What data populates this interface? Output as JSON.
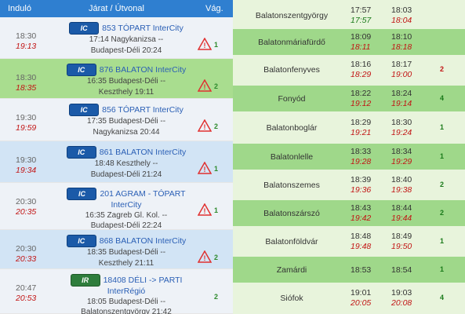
{
  "header": {
    "departure": "Induló",
    "route": "Járat / Útvonal",
    "track": "Vág."
  },
  "trains": [
    {
      "dep": "18:30",
      "dep_actual": "19:13",
      "logo": "IC",
      "name": "853 TÓPART InterCity",
      "stations": [
        "17:14 Nagykanizsa --",
        "Budapest-Déli 20:24"
      ],
      "track": "1",
      "warning": true
    },
    {
      "dep": "18:30",
      "dep_actual": "18:35",
      "logo": "IC",
      "name": "876 BALATON InterCity",
      "stations": [
        "16:35 Budapest-Déli --",
        "Keszthely 19:11"
      ],
      "track": "2",
      "warning": true
    },
    {
      "dep": "19:30",
      "dep_actual": "19:59",
      "logo": "IC",
      "name": "856 TÓPART InterCity",
      "stations": [
        "17:35 Budapest-Déli --",
        "Nagykanizsa 20:44"
      ],
      "track": "2",
      "warning": true
    },
    {
      "dep": "19:30",
      "dep_actual": "19:34",
      "logo": "IC",
      "name": "861 BALATON InterCity",
      "stations": [
        "18:48 Keszthely --",
        "Budapest-Déli 21:24"
      ],
      "track": "1",
      "warning": true
    },
    {
      "dep": "20:30",
      "dep_actual": "20:35",
      "logo": "IC",
      "name": "201 AGRAM - TÓPART",
      "name2": "InterCity",
      "stations": [
        "16:35 Zagreb Gl. Kol. --",
        "Budapest-Déli 22:24"
      ],
      "track": "1",
      "warning": true
    },
    {
      "dep": "20:30",
      "dep_actual": "20:33",
      "logo": "IC",
      "name": "868 BALATON InterCity",
      "stations": [
        "18:35 Budapest-Déli --",
        "Keszthely 21:11"
      ],
      "track": "2",
      "warning": true
    },
    {
      "dep": "20:47",
      "dep_actual": "20:53",
      "logo": "IR",
      "name": "18408 DÉLI -> PARTI",
      "name2": "InterRégió",
      "stations": [
        "18:05 Budapest-Déli --",
        "Balatonszentgyörgy 21:42"
      ],
      "track": "2",
      "warning": false
    }
  ],
  "stops": [
    {
      "station": "Balatonszentgyörgy",
      "arr": "17:57",
      "arr_actual": "17:57",
      "arr_green": true,
      "dep": "18:03",
      "dep_actual": "18:04",
      "track": ""
    },
    {
      "station": "Balatonmáriafürdő",
      "arr": "18:09",
      "arr_actual": "18:11",
      "dep": "18:10",
      "dep_actual": "18:18",
      "track": ""
    },
    {
      "station": "Balatonfenyves",
      "arr": "18:16",
      "arr_actual": "18:29",
      "dep": "18:17",
      "dep_actual": "19:00",
      "track": "2",
      "track_red": true
    },
    {
      "station": "Fonyód",
      "arr": "18:22",
      "arr_actual": "19:12",
      "dep": "18:24",
      "dep_actual": "19:14",
      "track": "4"
    },
    {
      "station": "Balatonboglár",
      "arr": "18:29",
      "arr_actual": "19:21",
      "dep": "18:30",
      "dep_actual": "19:24",
      "track": "1"
    },
    {
      "station": "Balatonlelle",
      "arr": "18:33",
      "arr_actual": "19:28",
      "dep": "18:34",
      "dep_actual": "19:29",
      "track": "1"
    },
    {
      "station": "Balatonszemes",
      "arr": "18:39",
      "arr_actual": "19:36",
      "dep": "18:40",
      "dep_actual": "19:38",
      "track": "2"
    },
    {
      "station": "Balatonszárszó",
      "arr": "18:43",
      "arr_actual": "19:42",
      "dep": "18:44",
      "dep_actual": "19:44",
      "track": "2"
    },
    {
      "station": "Balatonföldvár",
      "arr": "18:48",
      "arr_actual": "19:48",
      "dep": "18:49",
      "dep_actual": "19:50",
      "track": "1"
    },
    {
      "station": "Zamárdi",
      "arr": "18:53",
      "arr_actual": "",
      "dep": "18:54",
      "dep_actual": "",
      "track": "1"
    },
    {
      "station": "Siófok",
      "arr": "19:01",
      "arr_actual": "20:05",
      "dep": "19:03",
      "dep_actual": "20:08",
      "track": "4"
    }
  ],
  "colors": {
    "header": "#2f7fd0",
    "ic_blue": "#1b5aa8",
    "ir_green": "#2e7d3c",
    "delay_red": "#c21515",
    "ok_green": "#1a7a1a",
    "row_alt": "#9fd88a",
    "row_light": "#e8f4dc"
  },
  "icons": {
    "warning": "warning-triangle-icon",
    "ic": "intercity-logo-icon",
    "ir": "interregio-logo-icon"
  }
}
